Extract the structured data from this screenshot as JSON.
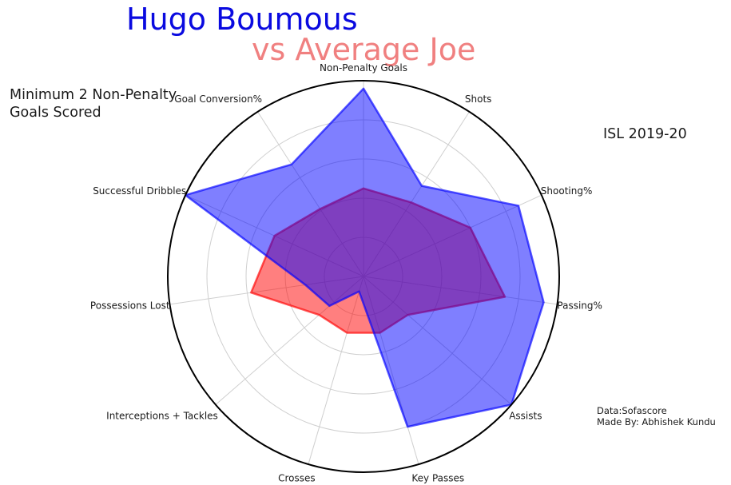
{
  "title": {
    "player": "Hugo Boumous",
    "comparison": "vs Average Joe"
  },
  "note_lines": [
    "Minimum 2 Non-Penalty",
    "Goals Scored"
  ],
  "season": "ISL 2019-20",
  "credits": [
    "Data:Sofascore",
    "Made By: Abhishek Kundu"
  ],
  "colors": {
    "player": "#0a0ae0",
    "comparison": "#f08080",
    "player_fill": "#0000ff",
    "comparison_fill": "#ff0000"
  },
  "chart_data": {
    "type": "radar",
    "axes": [
      "Non-Penalty Goals",
      "Shots",
      "Shooting%",
      "Passing%",
      "Assists",
      "Key Passes",
      "Crosses",
      "Interceptions + Tackles",
      "Possessions Lost",
      "Successful Dribbles",
      "Goal Conversion%"
    ],
    "rlim": [
      0,
      1
    ],
    "grid": true,
    "series": [
      {
        "name": "Hugo Boumous",
        "values": [
          0.96,
          0.55,
          0.87,
          0.93,
          1.0,
          0.8,
          0.08,
          0.23,
          0.3,
          1.0,
          0.68
        ]
      },
      {
        "name": "Average Joe",
        "values": [
          0.45,
          0.45,
          0.6,
          0.73,
          0.3,
          0.3,
          0.3,
          0.3,
          0.58,
          0.5,
          0.41
        ]
      }
    ]
  }
}
